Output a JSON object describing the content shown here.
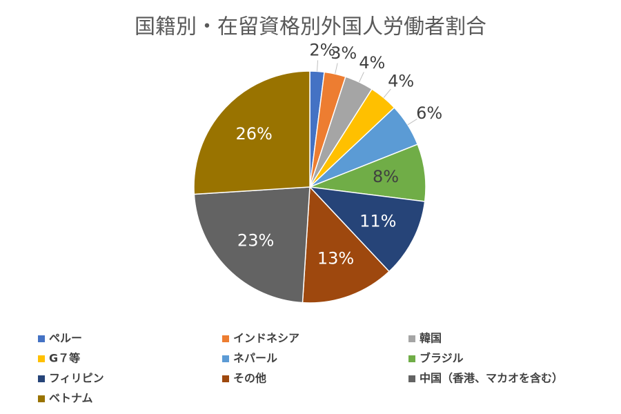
{
  "chart_data": {
    "type": "pie",
    "title": "国籍別・在留資格別外国人労働者割合",
    "categories": [
      "ペルー",
      "インドネシア",
      "韓国",
      "G７等",
      "ネパール",
      "ブラジル",
      "フィリピン",
      "その他",
      "中国（香港、マカオを含む）",
      "ベトナム"
    ],
    "values": [
      2,
      3,
      4,
      4,
      6,
      8,
      11,
      13,
      23,
      26
    ],
    "value_labels": [
      "2%",
      "3%",
      "4%",
      "4%",
      "6%",
      "8%",
      "11%",
      "13%",
      "23%",
      "26%"
    ],
    "colors": [
      "#4472c4",
      "#ed7d31",
      "#a5a5a5",
      "#ffc000",
      "#5b9bd5",
      "#70ad47",
      "#264478",
      "#9e480e",
      "#636363",
      "#997300"
    ],
    "legend": "bottom"
  }
}
